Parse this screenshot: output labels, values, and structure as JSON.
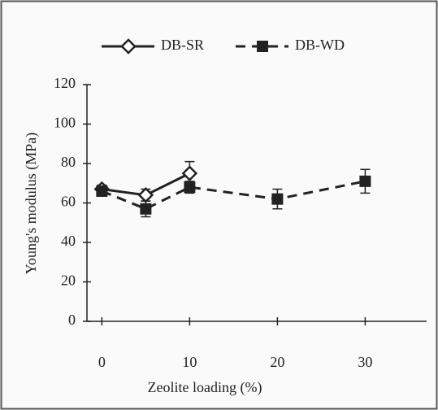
{
  "chart_data": {
    "type": "line",
    "x_label": "Zeolite loading (%)",
    "y_label": "Young's modulus (MPa)",
    "xlim": [
      -1.7,
      37
    ],
    "xticks": [
      0,
      10,
      20,
      30
    ],
    "ylim": [
      0,
      120
    ],
    "yticks": [
      0,
      20,
      40,
      60,
      80,
      100,
      120
    ],
    "series": [
      {
        "name": "DB-SR",
        "color": "#222222",
        "line_style": "solid",
        "marker": "diamond",
        "x": [
          0,
          5,
          10
        ],
        "values": [
          67,
          64,
          75
        ],
        "errors": [
          2,
          3,
          6
        ]
      },
      {
        "name": "DB-WD",
        "color": "#222222",
        "line_style": "dashed",
        "marker": "square",
        "x": [
          0,
          5,
          10,
          20,
          30
        ],
        "values": [
          66,
          57,
          68,
          62,
          71
        ],
        "errors": [
          2,
          4,
          3,
          5,
          6
        ]
      }
    ]
  }
}
